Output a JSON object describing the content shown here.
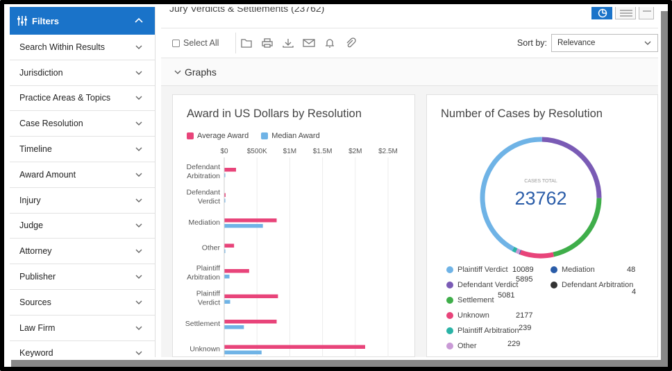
{
  "sidebar": {
    "header": "Filters",
    "items": [
      {
        "label": "Search Within Results"
      },
      {
        "label": "Jurisdiction"
      },
      {
        "label": "Practice Areas & Topics"
      },
      {
        "label": "Case Resolution"
      },
      {
        "label": "Timeline"
      },
      {
        "label": "Award Amount"
      },
      {
        "label": "Injury"
      },
      {
        "label": "Judge"
      },
      {
        "label": "Attorney"
      },
      {
        "label": "Publisher"
      },
      {
        "label": "Sources"
      },
      {
        "label": "Law Firm"
      },
      {
        "label": "Keyword"
      }
    ]
  },
  "header": {
    "title": "Jury Verdicts & Settlements (23762)"
  },
  "toolbar": {
    "select_all": "Select All",
    "sort_by_label": "Sort by:",
    "sort_value": "Relevance"
  },
  "graphs_section": {
    "label": "Graphs"
  },
  "colors": {
    "accent": "#1a73c9",
    "pink": "#e8447a",
    "light_blue": "#6fb3e6"
  },
  "award_chart": {
    "title": "Award in US Dollars by Resolution",
    "legend": [
      "Average Award",
      "Median Award"
    ],
    "ticks": [
      "$0",
      "$500K",
      "$1M",
      "$1.5M",
      "$2M",
      "$2.5M"
    ]
  },
  "cases_chart": {
    "title": "Number of Cases by Resolution",
    "center_label": "CASES TOTAL",
    "total": "23762",
    "legend": [
      {
        "label": "Plaintiff Verdict",
        "value": "10089",
        "color": "#6fb3e6"
      },
      {
        "label": "Defendant Verdict",
        "value": "5895",
        "color": "#7a5bb5"
      },
      {
        "label": "Settlement",
        "value": "5081",
        "color": "#3fae4a"
      },
      {
        "label": "Unknown",
        "value": "2177",
        "color": "#e8447a"
      },
      {
        "label": "Plaintiff Arbitration",
        "value": "239",
        "color": "#2ab3a6"
      },
      {
        "label": "Other",
        "value": "229",
        "color": "#c99ad6"
      },
      {
        "label": "Mediation",
        "value": "48",
        "color": "#2a5ca8"
      },
      {
        "label": "Defendant Arbitration",
        "value": "4",
        "color": "#333333"
      }
    ]
  },
  "chart_data": [
    {
      "type": "bar",
      "title": "Award in US Dollars by Resolution",
      "orientation": "horizontal",
      "categories": [
        "Defendant Arbitration",
        "Defendant Verdict",
        "Mediation",
        "Other",
        "Plaintiff Arbitration",
        "Plaintiff Verdict",
        "Settlement",
        "Unknown"
      ],
      "series": [
        {
          "name": "Average Award",
          "color": "#e8447a",
          "values": [
            180000,
            20000,
            800000,
            150000,
            380000,
            820000,
            800000,
            2150000
          ]
        },
        {
          "name": "Median Award",
          "color": "#6fb3e6",
          "values": [
            15000,
            10000,
            590000,
            15000,
            80000,
            90000,
            300000,
            570000
          ]
        }
      ],
      "xlim": [
        0,
        2500000
      ],
      "xticks": [
        "$0",
        "$500K",
        "$1M",
        "$1.5M",
        "$2M",
        "$2.5M"
      ],
      "legend_position": "top-left",
      "grid": true
    },
    {
      "type": "pie",
      "variant": "donut",
      "title": "Number of Cases by Resolution",
      "labels": [
        "Plaintiff Verdict",
        "Defendant Verdict",
        "Settlement",
        "Unknown",
        "Plaintiff Arbitration",
        "Other",
        "Mediation",
        "Defendant Arbitration"
      ],
      "values": [
        10089,
        5895,
        5081,
        2177,
        239,
        229,
        48,
        4
      ],
      "total": 23762
    }
  ]
}
